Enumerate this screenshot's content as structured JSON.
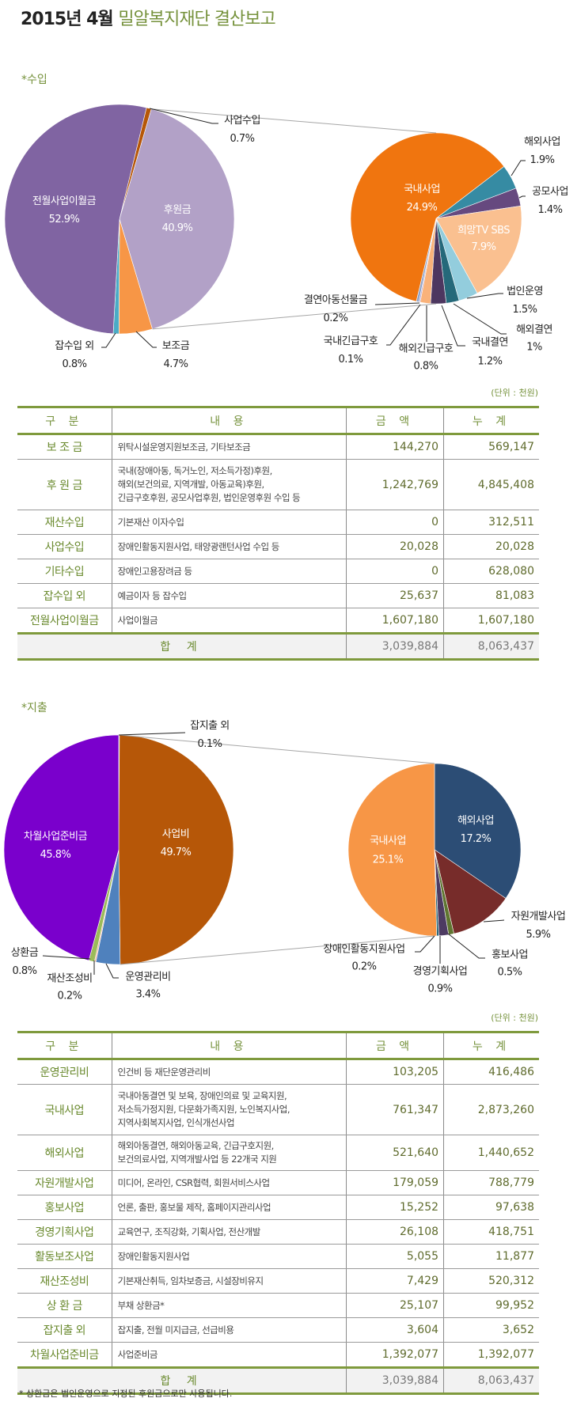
{
  "header": {
    "title_black": "2015년 4월",
    "title_green": "밀알복지재단 결산보고"
  },
  "income": {
    "section_label": "*수입",
    "unit": "(단위 : 천원)",
    "columns": [
      "구 분",
      "내 용",
      "금 액",
      "누 계"
    ],
    "rows": [
      {
        "category": "보 조 금",
        "desc": "위탁시설운영지원보조금, 기타보조금",
        "amount": "144,270",
        "cumulative": "569,147"
      },
      {
        "category": "후 원 금",
        "desc": "국내(장애아동, 독거노인, 저소득가정)후원,\n해외(보건의료, 지역개발, 아동교육)후원,\n긴급구호후원, 공모사업후원, 법인운영후원 수입 등",
        "amount": "1,242,769",
        "cumulative": "4,845,408"
      },
      {
        "category": "재산수입",
        "desc": "기본재산 이자수입",
        "amount": "0",
        "cumulative": "312,511"
      },
      {
        "category": "사업수입",
        "desc": "장애인활동지원사업, 태양광랜턴사업 수입 등",
        "amount": "20,028",
        "cumulative": "20,028"
      },
      {
        "category": "기타수입",
        "desc": "장애인고용장려금 등",
        "amount": "0",
        "cumulative": "628,080"
      },
      {
        "category": "잡수입 외",
        "desc": "예금이자 등 잡수입",
        "amount": "25,637",
        "cumulative": "81,083"
      },
      {
        "category": "전월사업이월금",
        "desc": "사업이월금",
        "amount": "1,607,180",
        "cumulative": "1,607,180"
      }
    ],
    "total": {
      "label": "합 계",
      "amount": "3,039,884",
      "cumulative": "8,063,437"
    }
  },
  "expense": {
    "section_label": "*지출",
    "unit": "(단위 : 천원)",
    "columns": [
      "구 분",
      "내 용",
      "금 액",
      "누 계"
    ],
    "rows": [
      {
        "category": "운영관리비",
        "desc": "인건비 등 재단운영관리비",
        "amount": "103,205",
        "cumulative": "416,486"
      },
      {
        "category": "국내사업",
        "desc": "국내아동결연 및 보육, 장애인의료 및 교육지원,\n저소득가정지원, 다문화가족지원, 노인복지사업,\n지역사회복지사업, 인식개선사업",
        "amount": "761,347",
        "cumulative": "2,873,260"
      },
      {
        "category": "해외사업",
        "desc": "해외아동결연, 해외아동교육, 긴급구호지원,\n보건의료사업, 지역개발사업 등 22개국 지원",
        "amount": "521,640",
        "cumulative": "1,440,652"
      },
      {
        "category": "자원개발사업",
        "desc": "미디어, 온라인, CSR협력, 회원서비스사업",
        "amount": "179,059",
        "cumulative": "788,779"
      },
      {
        "category": "홍보사업",
        "desc": "언론, 출판, 홍보물 제작, 홈페이지관리사업",
        "amount": "15,252",
        "cumulative": "97,638"
      },
      {
        "category": "경영기획사업",
        "desc": "교육연구, 조직강화, 기획사업, 전산개발",
        "amount": "26,108",
        "cumulative": "418,751"
      },
      {
        "category": "활동보조사업",
        "desc": "장애인활동지원사업",
        "amount": "5,055",
        "cumulative": "11,877"
      },
      {
        "category": "재산조성비",
        "desc": "기본재산취득, 임차보증금, 시설장비유지",
        "amount": "7,429",
        "cumulative": "520,312"
      },
      {
        "category": "상 환 금",
        "desc": "부채 상환금*",
        "amount": "25,107",
        "cumulative": "99,952"
      },
      {
        "category": "잡지출 외",
        "desc": "잡지출, 전월 미지급금, 선급비용",
        "amount": "3,604",
        "cumulative": "3,652"
      },
      {
        "category": "차월사업준비금",
        "desc": "사업준비금",
        "amount": "1,392,077",
        "cumulative": "1,392,077"
      }
    ],
    "total": {
      "label": "합 계",
      "amount": "3,039,884",
      "cumulative": "8,063,437"
    },
    "footnote": "* 상환금은 법인운영으로 지정된 후원금으로만 사용됩니다."
  },
  "chart_data": [
    {
      "type": "pie",
      "subtype": "pie-of-pie",
      "title": "*수입",
      "main": [
        {
          "name": "사업수입",
          "value": 0.7,
          "label": "0.7%",
          "color": "#B65708"
        },
        {
          "name": "후원금",
          "value": 40.9,
          "label": "40.9%",
          "color": "#B2A1C7",
          "expanded": true
        },
        {
          "name": "보조금",
          "value": 4.7,
          "label": "4.7%",
          "color": "#F79646"
        },
        {
          "name": "잡수입 외",
          "value": 0.8,
          "label": "0.8%",
          "color": "#4BACC6"
        },
        {
          "name": "전월사업이월금",
          "value": 52.9,
          "label": "52.9%",
          "color": "#8064A2"
        }
      ],
      "secondary": [
        {
          "name": "해외사업",
          "value": 1.9,
          "label": "1.9%",
          "color": "#368BA3"
        },
        {
          "name": "공모사업",
          "value": 1.4,
          "label": "1.4%",
          "color": "#66497F"
        },
        {
          "name": "희망TV SBS",
          "value": 7.9,
          "label": "7.9%",
          "color": "#FAC090"
        },
        {
          "name": "법인운영",
          "value": 1.5,
          "label": "1.5%",
          "color": "#93CDDD"
        },
        {
          "name": "해외결연",
          "value": 1,
          "label": "1%",
          "color": "#25697A"
        },
        {
          "name": "국내결연",
          "value": 1.2,
          "label": "1.2%",
          "color": "#4D3760"
        },
        {
          "name": "해외긴급구호",
          "value": 0.8,
          "label": "0.8%",
          "color": "#F9B27A"
        },
        {
          "name": "국내긴급구호",
          "value": 0.1,
          "label": "0.1%",
          "color": "#B8A6D0"
        },
        {
          "name": "결연아동선물금",
          "value": 0.2,
          "label": "0.2%",
          "color": "#8EA3C9"
        },
        {
          "name": "국내사업",
          "value": 24.9,
          "label": "24.9%",
          "color": "#F0750F"
        }
      ]
    },
    {
      "type": "pie",
      "subtype": "pie-of-pie",
      "title": "*지출",
      "main": [
        {
          "name": "잡지출 외",
          "value": 0.1,
          "label": "0.1%",
          "color": "#4BACC6"
        },
        {
          "name": "사업비",
          "value": 49.7,
          "label": "49.7%",
          "color": "#B65708",
          "expanded": true
        },
        {
          "name": "운영관리비",
          "value": 3.4,
          "label": "3.4%",
          "color": "#4F81BD"
        },
        {
          "name": "재산조성비",
          "value": 0.2,
          "label": "0.2%",
          "color": "#F2B49A"
        },
        {
          "name": "상환금",
          "value": 0.8,
          "label": "0.8%",
          "color": "#9BBB59"
        },
        {
          "name": "차월사업준비금",
          "value": 45.8,
          "label": "45.8%",
          "color": "#7A00CC"
        }
      ],
      "secondary": [
        {
          "name": "해외사업",
          "value": 17.2,
          "label": "17.2%",
          "color": "#2C4D75"
        },
        {
          "name": "자원개발사업",
          "value": 5.9,
          "label": "5.9%",
          "color": "#772C2A"
        },
        {
          "name": "홍보사업",
          "value": 0.5,
          "label": "0.5%",
          "color": "#5F7530"
        },
        {
          "name": "경영기획사업",
          "value": 0.9,
          "label": "0.9%",
          "color": "#4D3B62"
        },
        {
          "name": "장애인활동지원사업",
          "value": 0.2,
          "label": "0.2%",
          "color": "#276A7C"
        },
        {
          "name": "국내사업",
          "value": 25.1,
          "label": "25.1%",
          "color": "#F79646"
        }
      ]
    }
  ]
}
